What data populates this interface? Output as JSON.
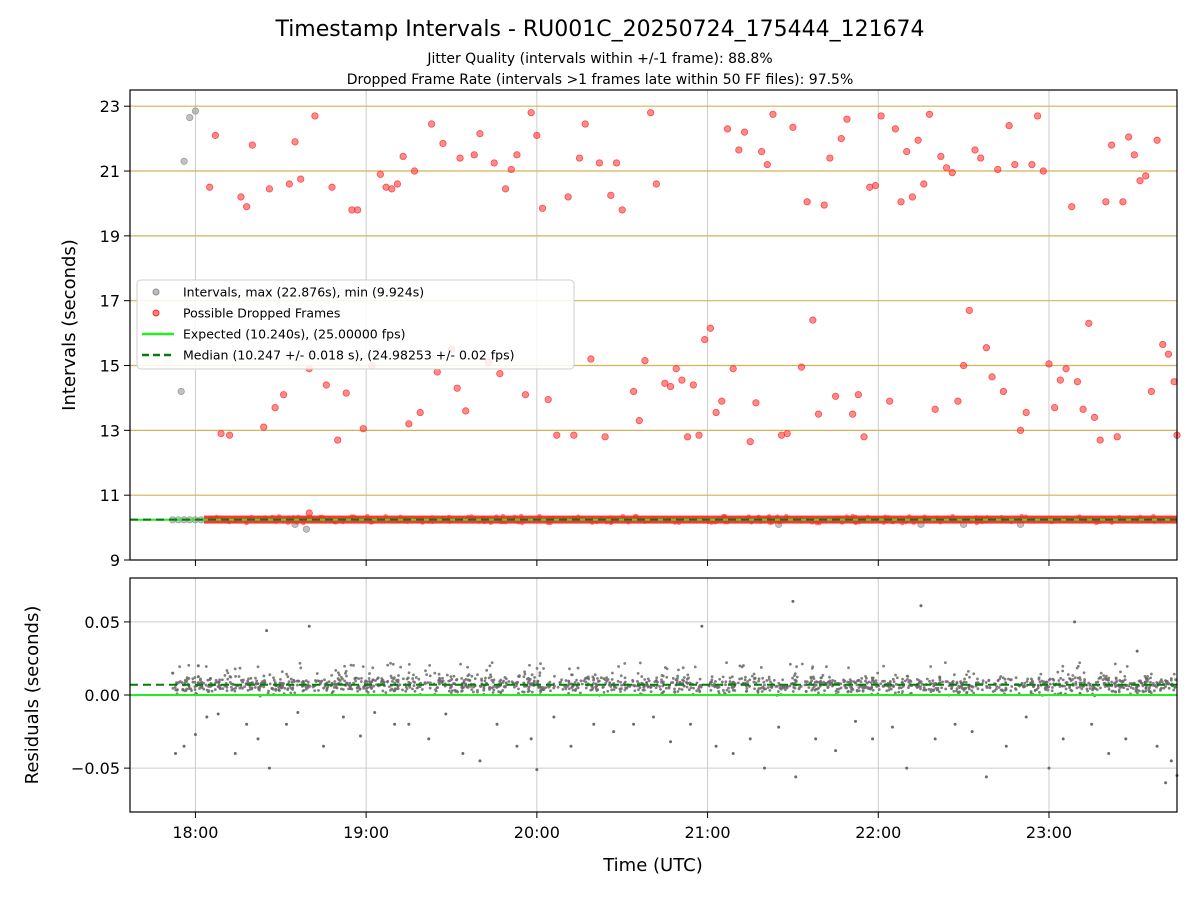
{
  "header": {
    "title": "Timestamp Intervals - RU001C_20250724_175444_121674",
    "subtitle_1": "Jitter Quality (intervals within +/-1 frame): 88.8%",
    "subtitle_2": "Dropped Frame Rate (intervals >1 frames late within 50 FF files): 97.5%"
  },
  "colors": {
    "intervals": "#8f8f8f",
    "dropped": "#ff2a2a",
    "expected": "#22ee22",
    "median": "#0a7a0a",
    "hgrid_top": "#d4b25a",
    "grid": "#cccccc",
    "residuals": "#6a6a6a"
  },
  "chart_data": [
    {
      "type": "scatter",
      "xlabel": "",
      "ylabel": "Intervals (seconds)",
      "xlim": [
        "17:37",
        "23:45"
      ],
      "ylim": [
        9,
        23.5
      ],
      "yticks": [
        9,
        11,
        13,
        15,
        17,
        19,
        21,
        23
      ],
      "xticks": [
        "18:00",
        "19:00",
        "20:00",
        "21:00",
        "22:00",
        "23:00"
      ],
      "grid": true,
      "legend_position": "center-left",
      "legend": [
        "Intervals, max (22.876s), min (9.924s)",
        "Possible Dropped Frames",
        "Expected (10.240s), (25.00000 fps)",
        "Median (10.247 +/- 0.018 s), (24.98253 +/- 0.02 fps)"
      ],
      "expected_value": 10.24,
      "median_value": 10.247,
      "baseline": {
        "x_start": "18:03",
        "x_end": "23:45",
        "y": 10.247
      },
      "series": [
        {
          "name": "Intervals, max (22.876s), min (9.924s)",
          "points": [
            [
              "17:55",
              14.2
            ],
            [
              "17:56",
              21.3
            ],
            [
              "17:58",
              22.65
            ],
            [
              "18:00",
              22.85
            ],
            [
              "17:52",
              10.24
            ],
            [
              "17:54",
              10.24
            ],
            [
              "17:56",
              10.24
            ],
            [
              "17:58",
              10.24
            ],
            [
              "18:00",
              10.24
            ],
            [
              "18:02",
              10.24
            ],
            [
              "18:35",
              10.1
            ],
            [
              "18:40",
              10.3
            ],
            [
              "18:39",
              9.95
            ],
            [
              "22:15",
              10.1
            ],
            [
              "22:30",
              10.1
            ],
            [
              "22:50",
              10.1
            ],
            [
              "21:25",
              10.1
            ]
          ]
        },
        {
          "name": "Possible Dropped Frames",
          "points": [
            [
              "18:05",
              20.5
            ],
            [
              "18:07",
              22.1
            ],
            [
              "18:09",
              12.9
            ],
            [
              "18:12",
              12.85
            ],
            [
              "18:16",
              20.2
            ],
            [
              "18:18",
              19.9
            ],
            [
              "18:20",
              21.8
            ],
            [
              "18:24",
              13.1
            ],
            [
              "18:26",
              20.45
            ],
            [
              "18:28",
              13.7
            ],
            [
              "18:31",
              14.1
            ],
            [
              "18:33",
              20.6
            ],
            [
              "18:35",
              21.9
            ],
            [
              "18:37",
              20.75
            ],
            [
              "18:40",
              14.9
            ],
            [
              "18:42",
              22.7
            ],
            [
              "18:46",
              14.4
            ],
            [
              "18:48",
              20.5
            ],
            [
              "18:50",
              12.7
            ],
            [
              "18:53",
              14.15
            ],
            [
              "18:55",
              19.8
            ],
            [
              "18:57",
              19.8
            ],
            [
              "18:59",
              13.05
            ],
            [
              "19:02",
              15.0
            ],
            [
              "19:05",
              20.9
            ],
            [
              "19:07",
              20.5
            ],
            [
              "19:09",
              20.45
            ],
            [
              "19:11",
              20.6
            ],
            [
              "19:13",
              21.45
            ],
            [
              "19:15",
              13.2
            ],
            [
              "19:17",
              21.0
            ],
            [
              "19:19",
              13.55
            ],
            [
              "19:23",
              22.45
            ],
            [
              "19:25",
              14.8
            ],
            [
              "19:27",
              21.85
            ],
            [
              "19:30",
              15.5
            ],
            [
              "19:32",
              14.3
            ],
            [
              "19:33",
              21.4
            ],
            [
              "19:35",
              13.6
            ],
            [
              "19:38",
              21.5
            ],
            [
              "19:40",
              22.15
            ],
            [
              "19:43",
              15.1
            ],
            [
              "19:45",
              21.25
            ],
            [
              "19:47",
              14.75
            ],
            [
              "19:49",
              20.45
            ],
            [
              "19:51",
              21.05
            ],
            [
              "19:53",
              21.5
            ],
            [
              "19:56",
              14.1
            ],
            [
              "19:58",
              22.8
            ],
            [
              "20:00",
              22.1
            ],
            [
              "20:02",
              19.85
            ],
            [
              "20:04",
              13.95
            ],
            [
              "20:07",
              12.85
            ],
            [
              "20:11",
              20.2
            ],
            [
              "20:13",
              12.85
            ],
            [
              "20:15",
              21.4
            ],
            [
              "20:17",
              22.45
            ],
            [
              "20:19",
              15.2
            ],
            [
              "20:22",
              21.25
            ],
            [
              "20:24",
              12.8
            ],
            [
              "20:26",
              20.25
            ],
            [
              "20:28",
              21.25
            ],
            [
              "20:30",
              19.8
            ],
            [
              "20:34",
              14.2
            ],
            [
              "20:36",
              13.3
            ],
            [
              "20:38",
              15.15
            ],
            [
              "20:40",
              22.8
            ],
            [
              "20:42",
              20.6
            ],
            [
              "20:45",
              14.45
            ],
            [
              "20:47",
              14.35
            ],
            [
              "20:49",
              14.9
            ],
            [
              "20:51",
              14.55
            ],
            [
              "20:53",
              12.8
            ],
            [
              "20:55",
              14.4
            ],
            [
              "20:57",
              12.85
            ],
            [
              "20:59",
              15.8
            ],
            [
              "21:01",
              16.15
            ],
            [
              "21:03",
              13.55
            ],
            [
              "21:05",
              13.9
            ],
            [
              "21:07",
              22.3
            ],
            [
              "21:09",
              14.9
            ],
            [
              "21:11",
              21.65
            ],
            [
              "21:13",
              22.2
            ],
            [
              "21:15",
              12.65
            ],
            [
              "21:17",
              13.85
            ],
            [
              "21:19",
              21.6
            ],
            [
              "21:21",
              21.2
            ],
            [
              "21:23",
              22.75
            ],
            [
              "21:26",
              12.85
            ],
            [
              "21:28",
              12.9
            ],
            [
              "21:30",
              22.35
            ],
            [
              "21:33",
              14.95
            ],
            [
              "21:35",
              20.05
            ],
            [
              "21:37",
              16.4
            ],
            [
              "21:39",
              13.5
            ],
            [
              "21:41",
              19.95
            ],
            [
              "21:43",
              21.4
            ],
            [
              "21:45",
              14.05
            ],
            [
              "21:47",
              22.0
            ],
            [
              "21:49",
              22.6
            ],
            [
              "21:51",
              13.5
            ],
            [
              "21:53",
              14.1
            ],
            [
              "21:55",
              12.8
            ],
            [
              "21:57",
              20.5
            ],
            [
              "21:59",
              20.55
            ],
            [
              "22:01",
              22.7
            ],
            [
              "22:04",
              13.9
            ],
            [
              "22:06",
              22.3
            ],
            [
              "22:08",
              20.05
            ],
            [
              "22:10",
              21.6
            ],
            [
              "22:12",
              20.2
            ],
            [
              "22:14",
              21.95
            ],
            [
              "22:16",
              20.6
            ],
            [
              "22:18",
              22.75
            ],
            [
              "22:20",
              13.65
            ],
            [
              "22:22",
              21.45
            ],
            [
              "22:24",
              21.1
            ],
            [
              "22:26",
              20.95
            ],
            [
              "22:28",
              13.9
            ],
            [
              "22:30",
              15.0
            ],
            [
              "22:32",
              16.7
            ],
            [
              "22:34",
              21.65
            ],
            [
              "22:36",
              21.4
            ],
            [
              "22:38",
              15.55
            ],
            [
              "22:40",
              14.65
            ],
            [
              "22:42",
              21.05
            ],
            [
              "22:44",
              14.2
            ],
            [
              "22:46",
              22.4
            ],
            [
              "22:48",
              21.2
            ],
            [
              "22:50",
              13.0
            ],
            [
              "22:52",
              13.55
            ],
            [
              "22:54",
              21.2
            ],
            [
              "22:56",
              22.7
            ],
            [
              "22:58",
              21.0
            ],
            [
              "23:00",
              15.05
            ],
            [
              "23:02",
              13.7
            ],
            [
              "23:04",
              14.55
            ],
            [
              "23:06",
              14.9
            ],
            [
              "23:08",
              19.9
            ],
            [
              "23:10",
              14.5
            ],
            [
              "23:12",
              13.65
            ],
            [
              "23:14",
              16.3
            ],
            [
              "23:16",
              13.4
            ],
            [
              "23:18",
              12.7
            ],
            [
              "23:20",
              20.05
            ],
            [
              "23:22",
              21.8
            ],
            [
              "23:24",
              12.8
            ],
            [
              "23:26",
              20.05
            ],
            [
              "23:28",
              22.05
            ],
            [
              "23:30",
              21.5
            ],
            [
              "23:32",
              20.7
            ],
            [
              "23:34",
              20.85
            ],
            [
              "23:36",
              14.2
            ],
            [
              "23:38",
              21.95
            ],
            [
              "23:40",
              15.65
            ],
            [
              "23:42",
              15.35
            ],
            [
              "23:44",
              14.5
            ],
            [
              "23:45",
              12.85
            ],
            [
              "18:40",
              10.45
            ]
          ]
        },
        {
          "name": "Expected (10.240s), (25.00000 fps)",
          "y": 10.24
        },
        {
          "name": "Median (10.247 +/- 0.018 s), (24.98253 +/- 0.02 fps)",
          "y": 10.247
        }
      ]
    },
    {
      "type": "scatter",
      "xlabel": "Time (UTC)",
      "ylabel": "Residuals (seconds)",
      "xlim": [
        "17:37",
        "23:45"
      ],
      "ylim": [
        -0.08,
        0.08
      ],
      "yticks": [
        -0.05,
        0.0,
        0.05
      ],
      "ytick_labels": [
        "−0.05",
        "0.00",
        "0.05"
      ],
      "xticks": [
        "18:00",
        "19:00",
        "20:00",
        "21:00",
        "22:00",
        "23:00"
      ],
      "grid": true,
      "expected_value": 0.0,
      "median_value": 0.007,
      "band": {
        "x_start": "17:52",
        "x_end": "23:45",
        "center": 0.007
      },
      "outliers": [
        [
          "17:52",
          0.015
        ],
        [
          "17:53",
          -0.04
        ],
        [
          "17:56",
          -0.035
        ],
        [
          "18:00",
          -0.027
        ],
        [
          "18:01",
          0.02
        ],
        [
          "18:04",
          -0.015
        ],
        [
          "18:08",
          -0.013
        ],
        [
          "18:14",
          -0.04
        ],
        [
          "18:18",
          -0.02
        ],
        [
          "18:22",
          -0.03
        ],
        [
          "18:25",
          0.044
        ],
        [
          "18:26",
          -0.05
        ],
        [
          "18:32",
          -0.02
        ],
        [
          "18:36",
          -0.012
        ],
        [
          "18:40",
          0.047
        ],
        [
          "18:45",
          -0.035
        ],
        [
          "18:52",
          -0.015
        ],
        [
          "18:58",
          -0.028
        ],
        [
          "19:03",
          -0.012
        ],
        [
          "19:10",
          -0.02
        ],
        [
          "19:15",
          -0.02
        ],
        [
          "19:22",
          -0.03
        ],
        [
          "19:28",
          -0.013
        ],
        [
          "19:34",
          -0.04
        ],
        [
          "19:40",
          -0.045
        ],
        [
          "19:46",
          -0.02
        ],
        [
          "19:53",
          -0.035
        ],
        [
          "19:58",
          -0.03
        ],
        [
          "20:00",
          -0.051
        ],
        [
          "20:06",
          -0.015
        ],
        [
          "20:12",
          -0.035
        ],
        [
          "20:20",
          -0.02
        ],
        [
          "20:27",
          -0.025
        ],
        [
          "20:34",
          -0.02
        ],
        [
          "20:41",
          -0.015
        ],
        [
          "20:47",
          -0.032
        ],
        [
          "20:54",
          -0.02
        ],
        [
          "20:58",
          0.047
        ],
        [
          "21:03",
          -0.035
        ],
        [
          "21:09",
          -0.04
        ],
        [
          "21:15",
          -0.03
        ],
        [
          "21:20",
          -0.05
        ],
        [
          "21:25",
          -0.022
        ],
        [
          "21:30",
          0.064
        ],
        [
          "21:31",
          -0.056
        ],
        [
          "21:38",
          -0.03
        ],
        [
          "21:45",
          -0.038
        ],
        [
          "21:52",
          -0.018
        ],
        [
          "21:58",
          -0.03
        ],
        [
          "22:05",
          -0.022
        ],
        [
          "22:10",
          -0.05
        ],
        [
          "22:15",
          0.061
        ],
        [
          "22:20",
          -0.03
        ],
        [
          "22:27",
          -0.02
        ],
        [
          "22:33",
          -0.025
        ],
        [
          "22:38",
          -0.056
        ],
        [
          "22:45",
          -0.035
        ],
        [
          "22:52",
          -0.015
        ],
        [
          "23:00",
          -0.05
        ],
        [
          "23:05",
          -0.03
        ],
        [
          "23:09",
          0.05
        ],
        [
          "23:15",
          -0.02
        ],
        [
          "23:21",
          -0.04
        ],
        [
          "23:27",
          -0.03
        ],
        [
          "23:31",
          0.03
        ],
        [
          "23:38",
          -0.035
        ],
        [
          "23:41",
          -0.06
        ],
        [
          "23:43",
          -0.045
        ],
        [
          "23:45",
          -0.055
        ]
      ]
    }
  ]
}
